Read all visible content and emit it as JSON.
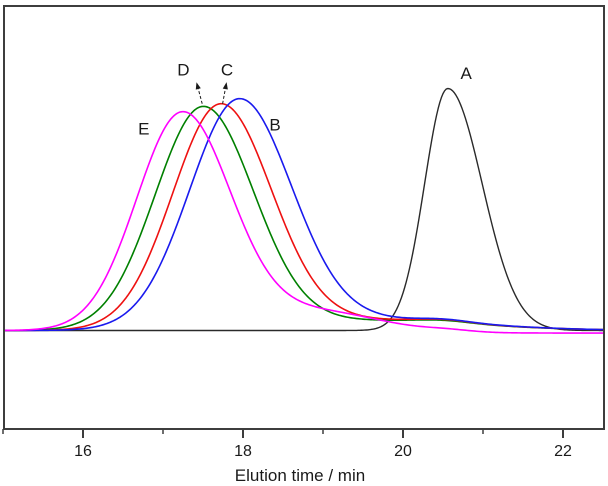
{
  "chart_data": {
    "type": "line",
    "title": "",
    "xlabel": "Elution time / min",
    "ylabel": "",
    "x_range": [
      15.0,
      22.525
    ],
    "x_major_ticks": [
      16,
      18,
      20,
      22
    ],
    "x_minor_ticks": [
      15,
      17,
      19,
      21
    ],
    "grid": false,
    "legend": "none (peaks labeled A–E with text annotations)",
    "y_axis_note": "unlabeled detector response, baseline = 0, tallest peak (A) = 1.0",
    "frame_color": "#3d3d3d",
    "text_color": "#1a1a1a",
    "background": "#ffffff",
    "series": [
      {
        "name": "A",
        "color": "#2a2a2a",
        "peak_time_min": 20.56,
        "peak_height_rel": 1.0,
        "shape": {
          "main": {
            "type": "apeak",
            "c": 20.56,
            "sl": 0.29,
            "sr": 0.43,
            "h": 1.0
          },
          "extras": []
        }
      },
      {
        "name": "B",
        "color": "#1a1aee",
        "peak_time_min": 17.95,
        "peak_height_rel": 0.938,
        "shape": {
          "main": {
            "type": "apeak",
            "c": 17.95,
            "sl": 0.62,
            "sr": 0.65,
            "h": 0.938
          },
          "extras": [
            {
              "type": "gauss",
              "c": 19.6,
              "s": 1.3,
              "h": 0.045
            },
            {
              "type": "gauss",
              "c": 20.5,
              "s": 0.33,
              "h": 0.012
            }
          ]
        }
      },
      {
        "name": "C",
        "color": "#ee1111",
        "peak_time_min": 17.72,
        "peak_height_rel": 0.922,
        "shape": {
          "main": {
            "type": "apeak",
            "c": 17.72,
            "sl": 0.6,
            "sr": 0.63,
            "h": 0.922
          },
          "extras": [
            {
              "type": "gauss",
              "c": 19.6,
              "s": 1.3,
              "h": 0.043
            },
            {
              "type": "gauss",
              "c": 20.5,
              "s": 0.33,
              "h": 0.012
            }
          ]
        }
      },
      {
        "name": "D",
        "color": "#008000",
        "peak_time_min": 17.5,
        "peak_height_rel": 0.915,
        "shape": {
          "main": {
            "type": "apeak",
            "c": 17.5,
            "sl": 0.6,
            "sr": 0.63,
            "h": 0.915
          },
          "extras": [
            {
              "type": "gauss",
              "c": 19.6,
              "s": 1.3,
              "h": 0.041
            },
            {
              "type": "gauss",
              "c": 20.5,
              "s": 0.33,
              "h": 0.01
            }
          ]
        }
      },
      {
        "name": "E",
        "color": "#ff00ff",
        "peak_time_min": 17.24,
        "peak_height_rel": 0.895,
        "shape": {
          "main": {
            "type": "apeak",
            "c": 17.24,
            "sl": 0.57,
            "sr": 0.6,
            "h": 0.895
          },
          "extras": [
            {
              "type": "gauss",
              "c": 18.9,
              "s": 0.8,
              "h": 0.08
            },
            {
              "type": "gauss",
              "c": 20.55,
              "s": 0.3,
              "h": 0.008
            },
            {
              "type": "sigmoid",
              "c": 19.8,
              "w": 0.35,
              "h": -0.0105
            }
          ]
        }
      }
    ],
    "draw_order": [
      "A",
      "D",
      "C",
      "B",
      "E"
    ],
    "annotations": [
      {
        "label": "A",
        "text_t": 20.79,
        "text_v": 1.065
      },
      {
        "label": "B",
        "text_t": 18.4,
        "text_v": 0.852
      },
      {
        "label": "C",
        "text_t": 17.8,
        "text_v": 1.078,
        "arrow": {
          "tip_t": 17.79,
          "tip_v": 1.018,
          "base_t": 17.745,
          "base_v": 0.937
        }
      },
      {
        "label": "D",
        "text_t": 17.255,
        "text_v": 1.078,
        "arrow": {
          "tip_t": 17.425,
          "tip_v": 1.018,
          "base_t": 17.49,
          "base_v": 0.937
        }
      },
      {
        "label": "E",
        "text_t": 16.76,
        "text_v": 0.835
      }
    ]
  }
}
